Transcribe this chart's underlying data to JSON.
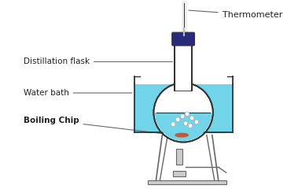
{
  "bg_color": "#ffffff",
  "outline_color": "#333333",
  "flask_color": "#ffffff",
  "water_bath_color": "#72d4e8",
  "water_in_flask_color": "#72d4e8",
  "stand_color": "#cccccc",
  "stand_edge": "#666666",
  "thermometer_cap_color": "#2a2a7a",
  "thermometer_tube_color": "#eeeeee",
  "flame_orange": "#ff7700",
  "flame_yellow": "#ffcc00",
  "boiling_chip_color": "#cc5533",
  "bubble_color": "#ffffff",
  "label_color": "#222222",
  "line_color": "#666666",
  "labels": {
    "thermometer": "Thermometer",
    "distillation_flask": "Distillation flask",
    "water_bath": "Water bath",
    "boiling_chip": "Boiling Chip"
  },
  "label_fontsize": 7.5
}
